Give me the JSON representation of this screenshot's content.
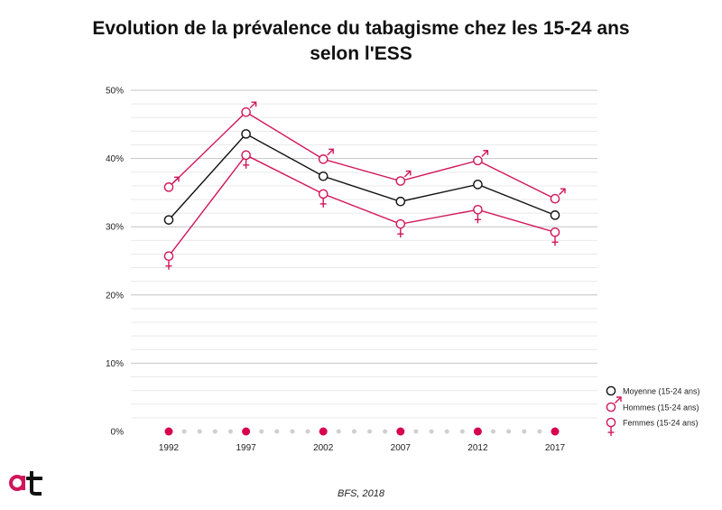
{
  "title": {
    "line1": "Evolution de la prévalence du tabagisme chez les 15-24 ans",
    "line2": "selon l'ESS"
  },
  "source": "BFS, 2018",
  "colors": {
    "average": "#111111",
    "men": "#d0165a",
    "women": "#d0165a",
    "grid": "#cccccc",
    "dots_minor": "#cfcfcf",
    "dots_major": "#d6004f"
  },
  "chart_data": {
    "type": "line",
    "title": "Evolution de la prévalence du tabagisme chez les 15-24 ans selon l'ESS",
    "xlabel": "",
    "ylabel": "",
    "x": [
      "1992",
      "1997",
      "2002",
      "2007",
      "2012",
      "2017"
    ],
    "y_ticks": [
      "0%",
      "10%",
      "20%",
      "30%",
      "40%",
      "50%"
    ],
    "ylim": [
      0,
      50
    ],
    "grid": true,
    "legend_position": "right",
    "series": [
      {
        "name": "Moyenne (15-24 ans)",
        "key": "average",
        "marker": "circle",
        "values": [
          31,
          43.6,
          37.4,
          33.7,
          36.2,
          31.7
        ]
      },
      {
        "name": "Hommes (15-24 ans)",
        "key": "men",
        "marker": "male",
        "values": [
          35.8,
          46.8,
          39.9,
          36.7,
          39.7,
          34.1
        ]
      },
      {
        "name": "Femmes (15-24 ans)",
        "key": "women",
        "marker": "female",
        "values": [
          25.7,
          40.5,
          34.8,
          30.4,
          32.5,
          29.2
        ]
      }
    ]
  }
}
